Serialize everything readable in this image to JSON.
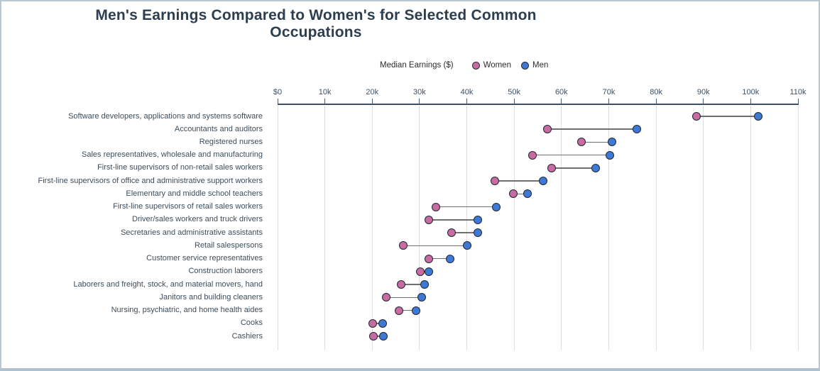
{
  "page": {
    "title": "Men's Earnings Compared to Women's for Selected Common Occupations"
  },
  "legend": {
    "axis_title": "Median Earnings ($)",
    "items": [
      {
        "label": "Women",
        "color": "#c76ba2"
      },
      {
        "label": "Men",
        "color": "#3f79d6"
      }
    ]
  },
  "chart_data": {
    "type": "scatter",
    "subtype": "dumbbell",
    "orientation": "horizontal",
    "title": "Men's Earnings Compared to Women's for Selected Common Occupations",
    "x_axis": {
      "title": "Median Earnings ($)",
      "position": "top",
      "range": [
        0,
        110000
      ],
      "grid": true,
      "tick_labels": [
        "$0",
        "10k",
        "20k",
        "30k",
        "40k",
        "50k",
        "60k",
        "70k",
        "80k",
        "90k",
        "100k",
        "110k"
      ],
      "tick_values": [
        0,
        10000,
        20000,
        30000,
        40000,
        50000,
        60000,
        70000,
        80000,
        90000,
        100000,
        110000
      ]
    },
    "legend_position": "top-center",
    "categories": [
      "Software developers, applications and systems software",
      "Accountants and auditors",
      "Registered nurses",
      "Sales representatives, wholesale and manufacturing",
      "First-line supervisors of non-retail sales workers",
      "First-line supervisors of office and administrative support workers",
      "Elementary and middle school teachers",
      "First-line supervisors of retail sales workers",
      "Driver/sales workers and truck drivers",
      "Secretaries and administrative assistants",
      "Retail salespersons",
      "Customer service representatives",
      "Construction laborers",
      "Laborers and freight, stock, and material movers, hand",
      "Janitors and building cleaners",
      "Nursing, psychiatric, and home health aides",
      "Cooks",
      "Cashiers"
    ],
    "series": [
      {
        "name": "Women",
        "color": "#c76ba2",
        "values": [
          88500,
          57000,
          64200,
          53900,
          58000,
          45900,
          49800,
          33500,
          32000,
          36700,
          26600,
          31900,
          30100,
          26100,
          22900,
          25600,
          20100,
          20300
        ]
      },
      {
        "name": "Men",
        "color": "#3f79d6",
        "values": [
          101600,
          75900,
          70700,
          70200,
          67200,
          56100,
          52800,
          46200,
          42300,
          42300,
          40000,
          36500,
          32000,
          31100,
          30400,
          29200,
          22200,
          22300
        ]
      }
    ],
    "marker_outline_color": "#1f2733",
    "connector_color": "#6f6f6f"
  },
  "colors": {
    "title_text": "#2c3e50",
    "axis_text": "#3e5064",
    "axis_line": "#3d4f63",
    "gridline": "#dcdfe3",
    "frame_border": "#b9c7d3"
  }
}
